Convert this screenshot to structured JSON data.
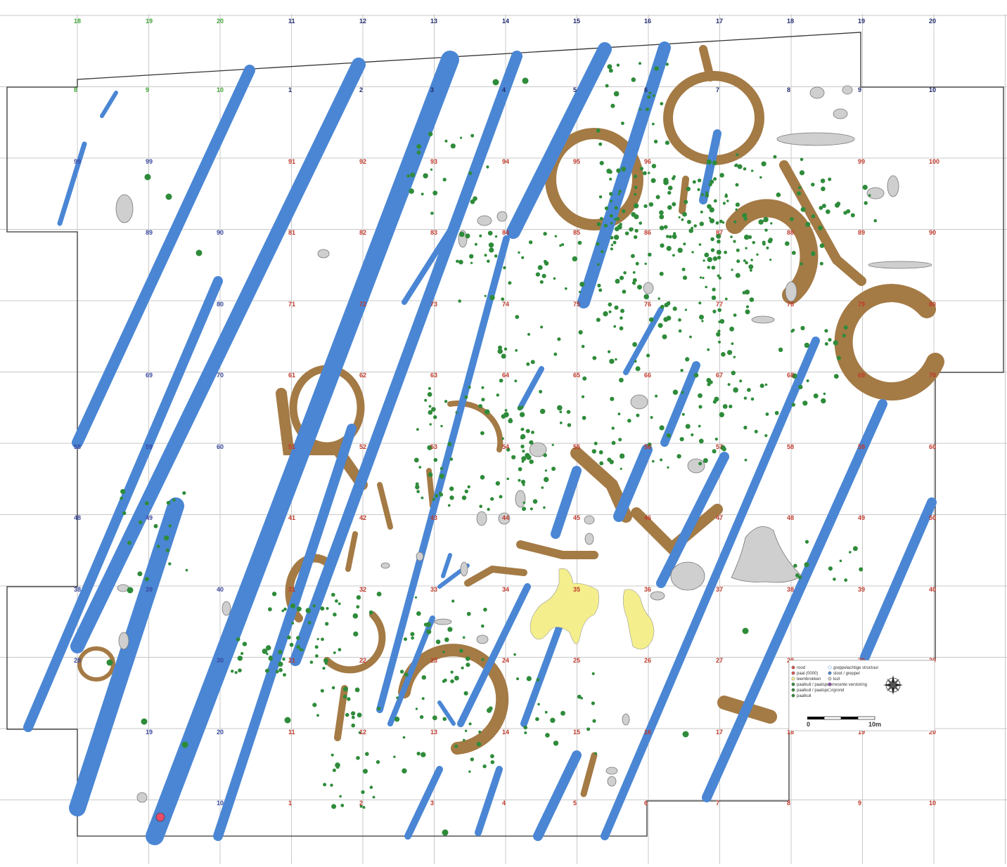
{
  "grid": {
    "top_labels": [
      "18",
      "19",
      "20",
      "11",
      "12",
      "13",
      "14",
      "15",
      "16",
      "17",
      "18",
      "19",
      "20"
    ],
    "top_color": [
      "#3fa535",
      "#3fa535",
      "#3fa535",
      "#1f2a6b",
      "#1f2a6b",
      "#1f2a6b",
      "#1f2a6b",
      "#1f2a6b",
      "#1f2a6b",
      "#1f2a6b",
      "#1f2a6b",
      "#1f2a6b",
      "#1f2a6b"
    ],
    "rows": [
      {
        "labels": [
          "8",
          "9",
          "10",
          "1",
          "2",
          "3",
          "4",
          "5",
          "6",
          "7",
          "8",
          "9",
          "10"
        ]
      },
      {
        "labels": [
          "99",
          "99",
          "",
          "91",
          "92",
          "93",
          "94",
          "95",
          "96",
          "",
          "",
          "99",
          "100"
        ]
      },
      {
        "labels": [
          "",
          "89",
          "90",
          "81",
          "82",
          "83",
          "84",
          "85",
          "86",
          "87",
          "88",
          "89",
          "90"
        ]
      },
      {
        "labels": [
          "",
          "",
          "80",
          "71",
          "72",
          "73",
          "74",
          "75",
          "76",
          "77",
          "78",
          "79",
          "80"
        ]
      },
      {
        "labels": [
          "",
          "69",
          "70",
          "61",
          "62",
          "63",
          "64",
          "65",
          "66",
          "67",
          "68",
          "69",
          "70"
        ]
      },
      {
        "labels": [
          "58",
          "59",
          "60",
          "51",
          "52",
          "53",
          "54",
          "55",
          "56",
          "57",
          "58",
          "59",
          "60"
        ]
      },
      {
        "labels": [
          "48",
          "49",
          "",
          "41",
          "42",
          "43",
          "44",
          "45",
          "46",
          "47",
          "48",
          "49",
          "50"
        ]
      },
      {
        "labels": [
          "38",
          "39",
          "40",
          "31",
          "32",
          "33",
          "34",
          "35",
          "36",
          "37",
          "38",
          "39",
          "40"
        ]
      },
      {
        "labels": [
          "28",
          "",
          "30",
          "21",
          "22",
          "23",
          "24",
          "25",
          "26",
          "27",
          "28",
          "29",
          "30"
        ]
      },
      {
        "labels": [
          "",
          "19",
          "20",
          "11",
          "12",
          "13",
          "14",
          "15",
          "16",
          "17",
          "18",
          "19",
          "20"
        ]
      },
      {
        "labels": [
          "",
          "",
          "10",
          "1",
          "2",
          "3",
          "4",
          "5",
          "6",
          "7",
          "8",
          "9",
          "10"
        ]
      }
    ]
  },
  "legend": {
    "items": [
      {
        "symbol": "red-dot",
        "label": "rood"
      },
      {
        "symbol": "red-dot",
        "label": "paal (0000)"
      },
      {
        "symbol": "yellow-dot",
        "label": "leembrokken"
      },
      {
        "symbol": "green-dot",
        "label": "paalkuil / paalspoor"
      },
      {
        "symbol": "green-dot",
        "label": "paalkuil / paalspoor"
      },
      {
        "symbol": "green-dot",
        "label": "paalkuil"
      },
      {
        "symbol": "blue-ring",
        "label": "greppelachtige structuur"
      },
      {
        "symbol": "blue-dot",
        "label": "sloot / greppel"
      },
      {
        "symbol": "gray-dot",
        "label": "kuil"
      },
      {
        "symbol": "purple-dot",
        "label": "recente verstoring"
      },
      {
        "symbol": "white-dot",
        "label": "grond"
      }
    ],
    "scale_start": "0",
    "scale_end": "10m",
    "compass": "compass-rose-icon"
  },
  "colors": {
    "ditch": "#4a86d4",
    "ring_ditch": "#a47a45",
    "pit": "#cfcfcf",
    "loam": "#f4ef8c",
    "posthole": "#2e8b3a",
    "grid": "#c8c8c8",
    "red_label": "#c0392b",
    "blue_label": "#3b4aa0"
  }
}
